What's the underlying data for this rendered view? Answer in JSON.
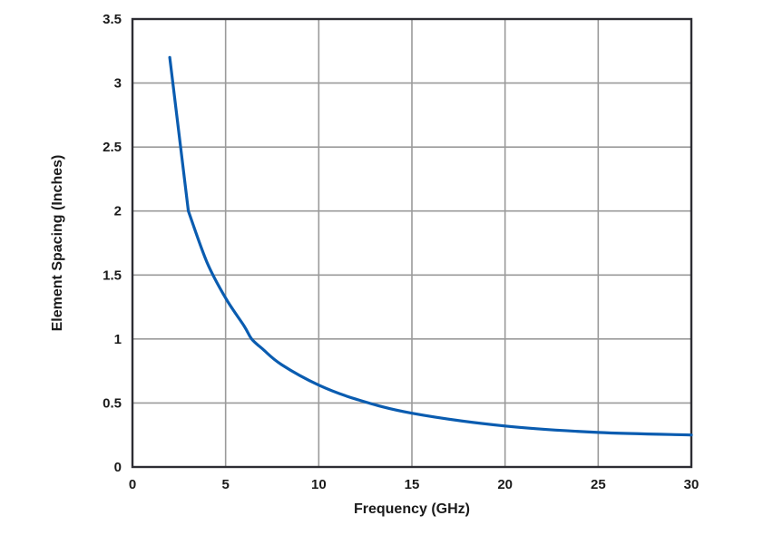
{
  "chart_data": {
    "type": "line",
    "title": "",
    "xlabel": "Frequency (GHz)",
    "ylabel": "Element Spacing (Inches)",
    "xlim": [
      0,
      30
    ],
    "ylim": [
      0,
      3.5
    ],
    "xticks": [
      0,
      5,
      10,
      15,
      20,
      25,
      30
    ],
    "yticks": [
      0,
      0.5,
      1,
      1.5,
      2,
      2.5,
      3,
      3.5
    ],
    "xtick_labels": [
      "0",
      "5",
      "10",
      "15",
      "20",
      "25",
      "30"
    ],
    "ytick_labels": [
      "0",
      "0.5",
      "1",
      "1.5",
      "2",
      "2.5",
      "3",
      "3.5"
    ],
    "grid": true,
    "legend": null,
    "series": [
      {
        "name": "Element Spacing",
        "color": "#0a5cb0",
        "x": [
          2,
          3,
          4,
          5,
          6,
          6.4,
          7,
          8,
          10,
          12,
          15,
          20,
          25,
          30
        ],
        "y": [
          3.2,
          2.0,
          1.6,
          1.32,
          1.1,
          1.0,
          0.92,
          0.8,
          0.64,
          0.53,
          0.42,
          0.32,
          0.27,
          0.25
        ]
      }
    ]
  },
  "colors": {
    "line": "#0a5cb0",
    "grid": "#9a9a9a",
    "axis": "#2d2d33",
    "text": "#1a1a1a"
  }
}
